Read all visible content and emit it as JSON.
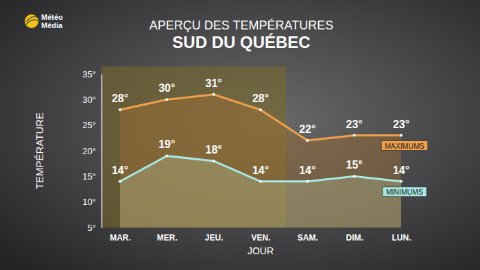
{
  "logo": [
    "Météo",
    "Média"
  ],
  "chart_data": {
    "type": "line",
    "title": "APERÇU DES TEMPÉRATURES",
    "subtitle": "SUD DU QUÉBEC",
    "x_label": "JOUR",
    "y_label": "TEMPÉRATURE",
    "categories": [
      "MAR.",
      "MER.",
      "JEU.",
      "VEN.",
      "SAM.",
      "DIM.",
      "LUN."
    ],
    "series": [
      {
        "name": "MAXIMUMS",
        "color": "#f0a04b",
        "values": [
          28,
          30,
          31,
          28,
          22,
          23,
          23
        ],
        "value_labels": [
          "28°",
          "30°",
          "31°",
          "28°",
          "22°",
          "23°",
          "23°"
        ]
      },
      {
        "name": "MINIMUMS",
        "color": "#a6e8e4",
        "values": [
          14,
          19,
          18,
          14,
          14,
          15,
          14
        ],
        "value_labels": [
          "14°",
          "19°",
          "18°",
          "14°",
          "14°",
          "15°",
          "14°"
        ]
      }
    ],
    "ylim": [
      5,
      35
    ],
    "yticks": [
      {
        "value": 5,
        "label": "5°"
      },
      {
        "value": 10,
        "label": "10°"
      },
      {
        "value": 15,
        "label": "15°"
      },
      {
        "value": 20,
        "label": "20°"
      },
      {
        "value": 25,
        "label": "25°"
      },
      {
        "value": 30,
        "label": "30°"
      },
      {
        "value": 35,
        "label": "35°"
      }
    ],
    "marker": "circle",
    "data_labels": true,
    "grid": false
  }
}
